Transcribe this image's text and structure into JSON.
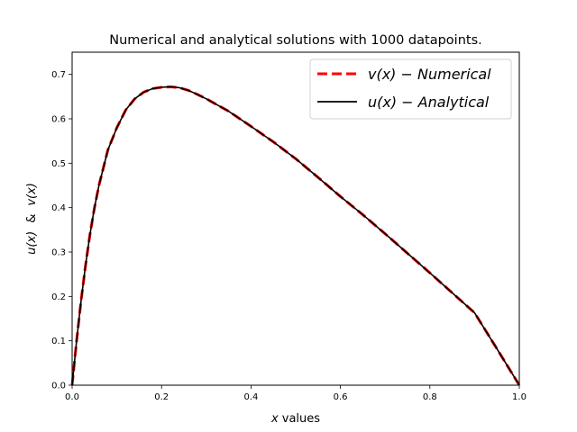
{
  "chart_data": {
    "type": "line",
    "title": "Numerical and analytical solutions with 1000 datapoints.",
    "xlabel_var": "x",
    "xlabel_rest": " values",
    "ylabel_u": "u(x)",
    "ylabel_amp": "&",
    "ylabel_v": "v(x)",
    "xlim": [
      0.0,
      1.0
    ],
    "ylim": [
      0.0,
      0.75
    ],
    "xticks": [
      0.0,
      0.2,
      0.4,
      0.6,
      0.8,
      1.0
    ],
    "xtick_labels": [
      "0.0",
      "0.2",
      "0.4",
      "0.6",
      "0.8",
      "1.0"
    ],
    "yticks": [
      0.0,
      0.1,
      0.2,
      0.3,
      0.4,
      0.5,
      0.6,
      0.7
    ],
    "ytick_labels": [
      "0.0",
      "0.1",
      "0.2",
      "0.3",
      "0.4",
      "0.5",
      "0.6",
      "0.7"
    ],
    "grid": false,
    "legend_position": "top-right",
    "x": [
      0.0,
      0.01,
      0.02,
      0.03,
      0.04,
      0.05,
      0.06,
      0.08,
      0.1,
      0.12,
      0.14,
      0.16,
      0.18,
      0.2,
      0.22,
      0.24,
      0.26,
      0.28,
      0.3,
      0.35,
      0.4,
      0.45,
      0.5,
      0.55,
      0.6,
      0.65,
      0.7,
      0.75,
      0.8,
      0.85,
      0.9,
      0.95,
      1.0
    ],
    "series": [
      {
        "name_func": "v(x)",
        "name_rest": "Numerical",
        "color": "#ff0000",
        "style": "dashed",
        "values": [
          0.0,
          0.1,
          0.19,
          0.27,
          0.34,
          0.4,
          0.45,
          0.53,
          0.58,
          0.62,
          0.645,
          0.66,
          0.668,
          0.671,
          0.672,
          0.67,
          0.664,
          0.655,
          0.645,
          0.617,
          0.583,
          0.548,
          0.51,
          0.468,
          0.425,
          0.384,
          0.341,
          0.297,
          0.253,
          0.208,
          0.163,
          0.082,
          0.0
        ]
      },
      {
        "name_func": "u(x)",
        "name_rest": "Analytical",
        "color": "#000000",
        "style": "solid",
        "values": [
          0.0,
          0.1,
          0.19,
          0.27,
          0.34,
          0.4,
          0.45,
          0.53,
          0.58,
          0.62,
          0.645,
          0.66,
          0.668,
          0.671,
          0.672,
          0.67,
          0.664,
          0.655,
          0.645,
          0.617,
          0.583,
          0.548,
          0.51,
          0.468,
          0.425,
          0.384,
          0.341,
          0.297,
          0.253,
          0.208,
          0.163,
          0.082,
          0.0
        ]
      }
    ]
  }
}
